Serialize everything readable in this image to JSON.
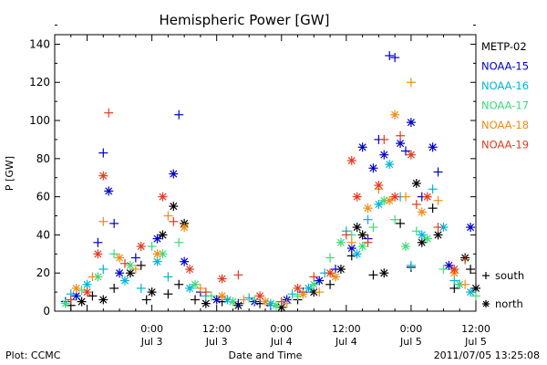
{
  "chart_data": {
    "type": "scatter",
    "title": "Hemispheric Power [GW]",
    "ylabel": "P [GW]",
    "xlabel": "Date and Time",
    "ylim": [
      0,
      145
    ],
    "xlim": [
      -18,
      60
    ],
    "y_ticks": [
      0,
      20,
      40,
      60,
      80,
      100,
      120,
      140
    ],
    "x_ticks": [
      {
        "x": 0,
        "time": "0:00",
        "date": "Jul 3"
      },
      {
        "x": 12,
        "time": "12:00",
        "date": "Jul 3"
      },
      {
        "x": 24,
        "time": "0:00",
        "date": "Jul 4"
      },
      {
        "x": 36,
        "time": "12:00",
        "date": "Jul 4"
      },
      {
        "x": 48,
        "time": "0:00",
        "date": "Jul 5"
      },
      {
        "x": 60,
        "time": "12:00",
        "date": "Jul 5"
      }
    ],
    "x_units_note": "x values are hours from 2011-07-03 00:00",
    "legend": {
      "placement": "right",
      "markers": [
        {
          "symbol": "+",
          "label": "south"
        },
        {
          "symbol": "*",
          "label": "north"
        }
      ]
    },
    "series": [
      {
        "name": "METP-02",
        "color": "#000000",
        "points": [
          {
            "x": -15,
            "y": 3,
            "m": "+"
          },
          {
            "x": -13,
            "y": 5,
            "m": "*"
          },
          {
            "x": -11,
            "y": 8,
            "m": "+"
          },
          {
            "x": -9,
            "y": 6,
            "m": "*"
          },
          {
            "x": -7,
            "y": 12,
            "m": "+"
          },
          {
            "x": -4,
            "y": 20,
            "m": "*"
          },
          {
            "x": -2,
            "y": 24,
            "m": "+"
          },
          {
            "x": -1,
            "y": 6,
            "m": "+"
          },
          {
            "x": 0,
            "y": 10,
            "m": "*"
          },
          {
            "x": 2,
            "y": 40,
            "m": "*"
          },
          {
            "x": 3,
            "y": 9,
            "m": "+"
          },
          {
            "x": 4,
            "y": 55,
            "m": "*"
          },
          {
            "x": 5,
            "y": 14,
            "m": "+"
          },
          {
            "x": 6,
            "y": 46,
            "m": "*"
          },
          {
            "x": 8,
            "y": 6,
            "m": "+"
          },
          {
            "x": 10,
            "y": 4,
            "m": "*"
          },
          {
            "x": 13,
            "y": 5,
            "m": "+"
          },
          {
            "x": 16,
            "y": 3,
            "m": "*"
          },
          {
            "x": 20,
            "y": 4,
            "m": "+"
          },
          {
            "x": 24,
            "y": 2,
            "m": "*"
          },
          {
            "x": 27,
            "y": 6,
            "m": "+"
          },
          {
            "x": 30,
            "y": 10,
            "m": "*"
          },
          {
            "x": 33,
            "y": 14,
            "m": "+"
          },
          {
            "x": 35,
            "y": 22,
            "m": "*"
          },
          {
            "x": 37,
            "y": 29,
            "m": "+"
          },
          {
            "x": 38,
            "y": 44,
            "m": "*"
          },
          {
            "x": 39,
            "y": 40,
            "m": "*"
          },
          {
            "x": 41,
            "y": 19,
            "m": "+"
          },
          {
            "x": 43,
            "y": 20,
            "m": "*"
          },
          {
            "x": 46,
            "y": 46,
            "m": "+"
          },
          {
            "x": 48,
            "y": 23,
            "m": "+"
          },
          {
            "x": 49,
            "y": 67,
            "m": "*"
          },
          {
            "x": 50,
            "y": 36,
            "m": "*"
          },
          {
            "x": 52,
            "y": 54,
            "m": "+"
          },
          {
            "x": 53,
            "y": 40,
            "m": "*"
          },
          {
            "x": 56,
            "y": 12,
            "m": "+"
          },
          {
            "x": 58,
            "y": 28,
            "m": "*"
          },
          {
            "x": 59,
            "y": 22,
            "m": "+"
          },
          {
            "x": 60,
            "y": 12,
            "m": "*"
          }
        ]
      },
      {
        "name": "NOAA-15",
        "color": "#0000c8",
        "points": [
          {
            "x": -16,
            "y": 5,
            "m": "+"
          },
          {
            "x": -14,
            "y": 8,
            "m": "*"
          },
          {
            "x": -10,
            "y": 36,
            "m": "+"
          },
          {
            "x": -9,
            "y": 83,
            "m": "+"
          },
          {
            "x": -8,
            "y": 63,
            "m": "*"
          },
          {
            "x": -7,
            "y": 46,
            "m": "+"
          },
          {
            "x": -6,
            "y": 20,
            "m": "*"
          },
          {
            "x": -3,
            "y": 28,
            "m": "+"
          },
          {
            "x": 1,
            "y": 38,
            "m": "*"
          },
          {
            "x": 4,
            "y": 72,
            "m": "*"
          },
          {
            "x": 5,
            "y": 103,
            "m": "+"
          },
          {
            "x": 6,
            "y": 26,
            "m": "*"
          },
          {
            "x": 9,
            "y": 10,
            "m": "+"
          },
          {
            "x": 12,
            "y": 6,
            "m": "*"
          },
          {
            "x": 16,
            "y": 4,
            "m": "+"
          },
          {
            "x": 19,
            "y": 5,
            "m": "*"
          },
          {
            "x": 22,
            "y": 3,
            "m": "+"
          },
          {
            "x": 25,
            "y": 6,
            "m": "*"
          },
          {
            "x": 28,
            "y": 10,
            "m": "+"
          },
          {
            "x": 31,
            "y": 16,
            "m": "*"
          },
          {
            "x": 34,
            "y": 22,
            "m": "+"
          },
          {
            "x": 37,
            "y": 33,
            "m": "*"
          },
          {
            "x": 39,
            "y": 86,
            "m": "*"
          },
          {
            "x": 40,
            "y": 38,
            "m": "+"
          },
          {
            "x": 41,
            "y": 75,
            "m": "*"
          },
          {
            "x": 42,
            "y": 90,
            "m": "+"
          },
          {
            "x": 43,
            "y": 82,
            "m": "*"
          },
          {
            "x": 44,
            "y": 134,
            "m": "+"
          },
          {
            "x": 45,
            "y": 133,
            "m": "+"
          },
          {
            "x": 46,
            "y": 88,
            "m": "*"
          },
          {
            "x": 47,
            "y": 84,
            "m": "+"
          },
          {
            "x": 48,
            "y": 99,
            "m": "*"
          },
          {
            "x": 50,
            "y": 60,
            "m": "+"
          },
          {
            "x": 52,
            "y": 86,
            "m": "*"
          },
          {
            "x": 53,
            "y": 73,
            "m": "+"
          },
          {
            "x": 55,
            "y": 24,
            "m": "*"
          },
          {
            "x": 57,
            "y": 14,
            "m": "+"
          },
          {
            "x": 59,
            "y": 44,
            "m": "*"
          }
        ]
      },
      {
        "name": "NOAA-16",
        "color": "#00b4dc",
        "points": [
          {
            "x": -15,
            "y": 9,
            "m": "+"
          },
          {
            "x": -12,
            "y": 14,
            "m": "*"
          },
          {
            "x": -9,
            "y": 22,
            "m": "+"
          },
          {
            "x": -5,
            "y": 16,
            "m": "*"
          },
          {
            "x": -2,
            "y": 12,
            "m": "+"
          },
          {
            "x": 1,
            "y": 26,
            "m": "*"
          },
          {
            "x": 3,
            "y": 18,
            "m": "+"
          },
          {
            "x": 7,
            "y": 12,
            "m": "*"
          },
          {
            "x": 10,
            "y": 8,
            "m": "+"
          },
          {
            "x": 14,
            "y": 6,
            "m": "*"
          },
          {
            "x": 18,
            "y": 7,
            "m": "+"
          },
          {
            "x": 22,
            "y": 4,
            "m": "*"
          },
          {
            "x": 26,
            "y": 9,
            "m": "+"
          },
          {
            "x": 29,
            "y": 12,
            "m": "*"
          },
          {
            "x": 32,
            "y": 20,
            "m": "+"
          },
          {
            "x": 36,
            "y": 42,
            "m": "+"
          },
          {
            "x": 38,
            "y": 30,
            "m": "*"
          },
          {
            "x": 40,
            "y": 48,
            "m": "+"
          },
          {
            "x": 42,
            "y": 56,
            "m": "*"
          },
          {
            "x": 44,
            "y": 77,
            "m": "*"
          },
          {
            "x": 46,
            "y": 60,
            "m": "+"
          },
          {
            "x": 48,
            "y": 24,
            "m": "+"
          },
          {
            "x": 50,
            "y": 40,
            "m": "*"
          },
          {
            "x": 52,
            "y": 64,
            "m": "+"
          },
          {
            "x": 54,
            "y": 44,
            "m": "*"
          },
          {
            "x": 56,
            "y": 16,
            "m": "+"
          },
          {
            "x": 59,
            "y": 10,
            "m": "*"
          }
        ]
      },
      {
        "name": "NOAA-17",
        "color": "#3cdc78",
        "points": [
          {
            "x": -16,
            "y": 4,
            "m": "*"
          },
          {
            "x": -13,
            "y": 11,
            "m": "+"
          },
          {
            "x": -10,
            "y": 18,
            "m": "*"
          },
          {
            "x": -7,
            "y": 30,
            "m": "+"
          },
          {
            "x": -4,
            "y": 24,
            "m": "*"
          },
          {
            "x": 0,
            "y": 34,
            "m": "+"
          },
          {
            "x": 2,
            "y": 30,
            "m": "*"
          },
          {
            "x": 5,
            "y": 36,
            "m": "+"
          },
          {
            "x": 8,
            "y": 14,
            "m": "*"
          },
          {
            "x": 11,
            "y": 8,
            "m": "+"
          },
          {
            "x": 15,
            "y": 5,
            "m": "*"
          },
          {
            "x": 19,
            "y": 6,
            "m": "+"
          },
          {
            "x": 23,
            "y": 3,
            "m": "*"
          },
          {
            "x": 27,
            "y": 8,
            "m": "+"
          },
          {
            "x": 30,
            "y": 14,
            "m": "*"
          },
          {
            "x": 33,
            "y": 28,
            "m": "+"
          },
          {
            "x": 35,
            "y": 36,
            "m": "*"
          },
          {
            "x": 37,
            "y": 40,
            "m": "+"
          },
          {
            "x": 39,
            "y": 34,
            "m": "*"
          },
          {
            "x": 41,
            "y": 44,
            "m": "+"
          },
          {
            "x": 43,
            "y": 58,
            "m": "*"
          },
          {
            "x": 45,
            "y": 48,
            "m": "+"
          },
          {
            "x": 47,
            "y": 34,
            "m": "*"
          },
          {
            "x": 49,
            "y": 42,
            "m": "+"
          },
          {
            "x": 51,
            "y": 38,
            "m": "*"
          },
          {
            "x": 54,
            "y": 22,
            "m": "+"
          },
          {
            "x": 57,
            "y": 14,
            "m": "*"
          },
          {
            "x": 60,
            "y": 8,
            "m": "+"
          }
        ]
      },
      {
        "name": "NOAA-18",
        "color": "#f08c14",
        "points": [
          {
            "x": -14,
            "y": 12,
            "m": "*"
          },
          {
            "x": -11,
            "y": 18,
            "m": "+"
          },
          {
            "x": -9,
            "y": 47,
            "m": "+"
          },
          {
            "x": -6,
            "y": 28,
            "m": "*"
          },
          {
            "x": -3,
            "y": 22,
            "m": "+"
          },
          {
            "x": 1,
            "y": 30,
            "m": "*"
          },
          {
            "x": 3,
            "y": 50,
            "m": "+"
          },
          {
            "x": 6,
            "y": 44,
            "m": "*"
          },
          {
            "x": 9,
            "y": 12,
            "m": "+"
          },
          {
            "x": 13,
            "y": 8,
            "m": "*"
          },
          {
            "x": 17,
            "y": 6,
            "m": "+"
          },
          {
            "x": 21,
            "y": 5,
            "m": "*"
          },
          {
            "x": 25,
            "y": 4,
            "m": "+"
          },
          {
            "x": 28,
            "y": 9,
            "m": "*"
          },
          {
            "x": 31,
            "y": 10,
            "m": "+"
          },
          {
            "x": 34,
            "y": 18,
            "m": "*"
          },
          {
            "x": 37,
            "y": 36,
            "m": "+"
          },
          {
            "x": 40,
            "y": 54,
            "m": "*"
          },
          {
            "x": 42,
            "y": 64,
            "m": "+"
          },
          {
            "x": 44,
            "y": 58,
            "m": "*"
          },
          {
            "x": 45,
            "y": 103,
            "m": "*"
          },
          {
            "x": 47,
            "y": 60,
            "m": "+"
          },
          {
            "x": 48,
            "y": 120,
            "m": "+"
          },
          {
            "x": 50,
            "y": 52,
            "m": "*"
          },
          {
            "x": 53,
            "y": 58,
            "m": "+"
          },
          {
            "x": 56,
            "y": 20,
            "m": "*"
          },
          {
            "x": 58,
            "y": 14,
            "m": "+"
          }
        ]
      },
      {
        "name": "NOAA-19",
        "color": "#e03c1e",
        "points": [
          {
            "x": -15,
            "y": 6,
            "m": "+"
          },
          {
            "x": -12,
            "y": 10,
            "m": "*"
          },
          {
            "x": -10,
            "y": 30,
            "m": "*"
          },
          {
            "x": -9,
            "y": 71,
            "m": "*"
          },
          {
            "x": -8,
            "y": 104,
            "m": "+"
          },
          {
            "x": -5,
            "y": 25,
            "m": "+"
          },
          {
            "x": -2,
            "y": 34,
            "m": "*"
          },
          {
            "x": 2,
            "y": 60,
            "m": "*"
          },
          {
            "x": 4,
            "y": 47,
            "m": "+"
          },
          {
            "x": 7,
            "y": 22,
            "m": "*"
          },
          {
            "x": 10,
            "y": 10,
            "m": "+"
          },
          {
            "x": 13,
            "y": 17,
            "m": "*"
          },
          {
            "x": 16,
            "y": 19,
            "m": "+"
          },
          {
            "x": 20,
            "y": 8,
            "m": "*"
          },
          {
            "x": 24,
            "y": 5,
            "m": "+"
          },
          {
            "x": 27,
            "y": 12,
            "m": "*"
          },
          {
            "x": 30,
            "y": 18,
            "m": "+"
          },
          {
            "x": 33,
            "y": 20,
            "m": "*"
          },
          {
            "x": 36,
            "y": 40,
            "m": "+"
          },
          {
            "x": 37,
            "y": 79,
            "m": "*"
          },
          {
            "x": 38,
            "y": 60,
            "m": "*"
          },
          {
            "x": 40,
            "y": 36,
            "m": "+"
          },
          {
            "x": 42,
            "y": 66,
            "m": "*"
          },
          {
            "x": 43,
            "y": 90,
            "m": "+"
          },
          {
            "x": 45,
            "y": 60,
            "m": "*"
          },
          {
            "x": 46,
            "y": 92,
            "m": "+"
          },
          {
            "x": 48,
            "y": 82,
            "m": "*"
          },
          {
            "x": 49,
            "y": 56,
            "m": "+"
          },
          {
            "x": 51,
            "y": 60,
            "m": "*"
          },
          {
            "x": 53,
            "y": 44,
            "m": "+"
          },
          {
            "x": 56,
            "y": 22,
            "m": "*"
          },
          {
            "x": 58,
            "y": 27,
            "m": "+"
          }
        ]
      }
    ]
  },
  "footer": {
    "left": "Plot: CCMC",
    "right": "2011/07/05 13:25:08"
  }
}
